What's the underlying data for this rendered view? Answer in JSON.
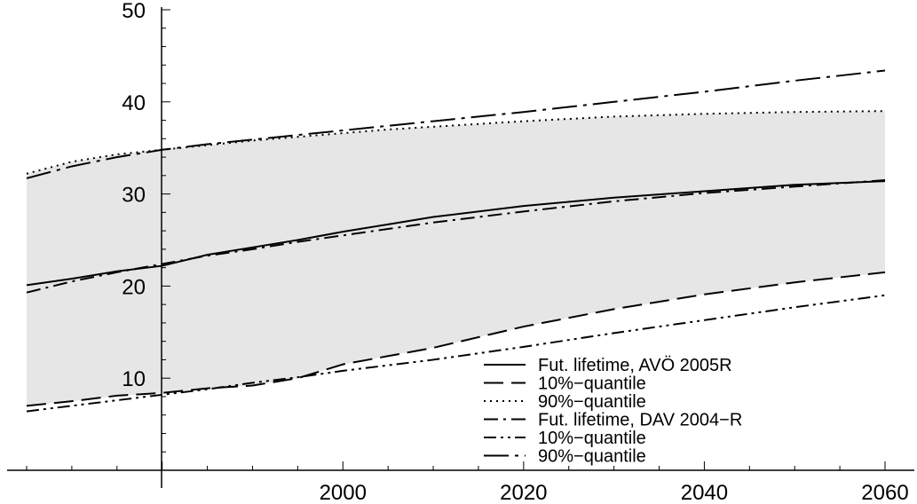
{
  "chart_data": {
    "type": "line",
    "title": "",
    "xlabel": "",
    "ylabel": "",
    "xlim": [
      1965,
      2060
    ],
    "ylim": [
      0,
      50
    ],
    "x_ticks": [
      2000,
      2020,
      2040,
      2060
    ],
    "y_ticks": [
      10,
      20,
      30,
      40,
      50
    ],
    "x_tick_labels": [
      "2000",
      "2020",
      "2040",
      "2060"
    ],
    "y_tick_labels": [
      "10",
      "20",
      "30",
      "40",
      "50"
    ],
    "grid": false,
    "legend_position": "bottom-right",
    "band": {
      "name": "AVÖ 2005R 10%–90% quantile band",
      "color": "#e6e6e6",
      "lower_series": 1,
      "upper_series": 2
    },
    "series": [
      {
        "name": "Fut. lifetime, AVÖ 2005R",
        "dash": "solid",
        "x": [
          1965,
          1970,
          1975,
          1980,
          1985,
          1990,
          1995,
          2000,
          2005,
          2010,
          2020,
          2030,
          2040,
          2050,
          2060
        ],
        "y": [
          20.1,
          20.8,
          21.6,
          22.2,
          23.4,
          24.2,
          25.0,
          25.9,
          26.7,
          27.5,
          28.7,
          29.6,
          30.3,
          31.0,
          31.4
        ]
      },
      {
        "name": "10%−quantile",
        "dash": "long-dash",
        "x": [
          1965,
          1970,
          1975,
          1980,
          1985,
          1990,
          1995,
          2000,
          2005,
          2010,
          2020,
          2030,
          2040,
          2050,
          2060
        ],
        "y": [
          7.0,
          7.5,
          8.1,
          8.4,
          8.9,
          9.2,
          10.0,
          11.5,
          12.4,
          13.3,
          15.6,
          17.5,
          19.1,
          20.4,
          21.5
        ]
      },
      {
        "name": "90%−quantile",
        "dash": "dotted",
        "x": [
          1965,
          1970,
          1975,
          1980,
          1985,
          1990,
          1995,
          2000,
          2005,
          2010,
          2020,
          2030,
          2040,
          2050,
          2060
        ],
        "y": [
          32.2,
          33.5,
          34.3,
          34.8,
          35.3,
          35.8,
          36.2,
          36.6,
          37.0,
          37.3,
          37.9,
          38.4,
          38.7,
          38.9,
          39.0
        ]
      },
      {
        "name": "Fut. lifetime, DAV 2004−R",
        "dash": "dash-dot",
        "x": [
          1965,
          1970,
          1975,
          1980,
          1985,
          1990,
          1995,
          2000,
          2005,
          2010,
          2020,
          2030,
          2040,
          2050,
          2060
        ],
        "y": [
          19.3,
          20.5,
          21.5,
          22.4,
          23.3,
          24.0,
          24.8,
          25.5,
          26.2,
          26.9,
          28.1,
          29.2,
          30.1,
          30.8,
          31.5
        ]
      },
      {
        "name": "10%−quantile",
        "dash": "dash-dot-dot",
        "x": [
          1965,
          1970,
          1975,
          1980,
          1985,
          1990,
          1995,
          2000,
          2005,
          2010,
          2020,
          2030,
          2040,
          2050,
          2060
        ],
        "y": [
          6.4,
          7.0,
          7.6,
          8.2,
          8.8,
          9.5,
          10.1,
          10.8,
          11.4,
          12.0,
          13.4,
          14.9,
          16.3,
          17.7,
          19.0
        ]
      },
      {
        "name": "90%−quantile",
        "dash": "long-dash-dot",
        "x": [
          1965,
          1970,
          1975,
          1980,
          1985,
          1990,
          1995,
          2000,
          2005,
          2010,
          2020,
          2030,
          2040,
          2050,
          2060
        ],
        "y": [
          31.7,
          33.0,
          34.0,
          34.8,
          35.4,
          35.9,
          36.4,
          36.9,
          37.4,
          37.9,
          38.9,
          40.0,
          41.1,
          42.3,
          43.4
        ]
      }
    ]
  }
}
